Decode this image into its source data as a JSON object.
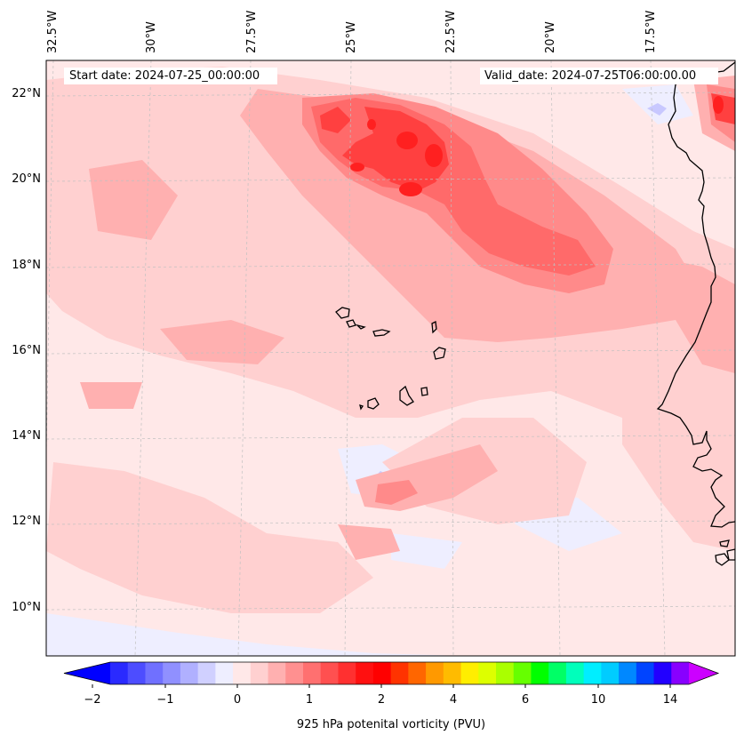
{
  "map": {
    "start_date_text": "Start date: 2024-07-25_00:00:00",
    "valid_date_text": "Valid_date: 2024-07-25T06:00:00.00",
    "longitude_labels": [
      "32.5°W",
      "30°W",
      "27.5°W",
      "25°W",
      "22.5°W",
      "20°W",
      "17.5°W"
    ],
    "latitude_labels": [
      "22°N",
      "20°N",
      "18°N",
      "16°N",
      "14°N",
      "12°N",
      "10°N"
    ],
    "background_color": "#ffe8e8",
    "colors": {
      "light_pink": "#ffd0d0",
      "pink": "#ffb0b0",
      "salmon": "#ff8a8a",
      "red_light": "#ff6a6a",
      "red": "#ff4040",
      "red_strong": "#ff2020",
      "pale_blue": "#eeeeff",
      "blue_light": "#c8c8ff",
      "coastline": "#000000",
      "grid": "#c0c0c0"
    }
  },
  "colorbar": {
    "title": "925 hPa potenital vorticity (PVU)",
    "tick_labels": [
      "−2",
      "−1",
      "0",
      "1",
      "2",
      "4",
      "6",
      "10",
      "14"
    ],
    "colors": [
      "#0000ff",
      "#2a2aff",
      "#4d4dff",
      "#7070ff",
      "#9090ff",
      "#b0b0ff",
      "#d0d0ff",
      "#eeeeff",
      "#ffe8e8",
      "#ffd0d0",
      "#ffb0b0",
      "#ff9090",
      "#ff7070",
      "#ff5050",
      "#ff3030",
      "#ff1010",
      "#ff0000",
      "#ff3300",
      "#ff6600",
      "#ff9900",
      "#ffbb00",
      "#ffee00",
      "#ddff00",
      "#aaff00",
      "#66ff00",
      "#00ff00",
      "#00ff66",
      "#00ffbb",
      "#00eeff",
      "#00ccff",
      "#0088ff",
      "#0044ff",
      "#2200ff",
      "#8800ff",
      "#cc00ff"
    ]
  }
}
